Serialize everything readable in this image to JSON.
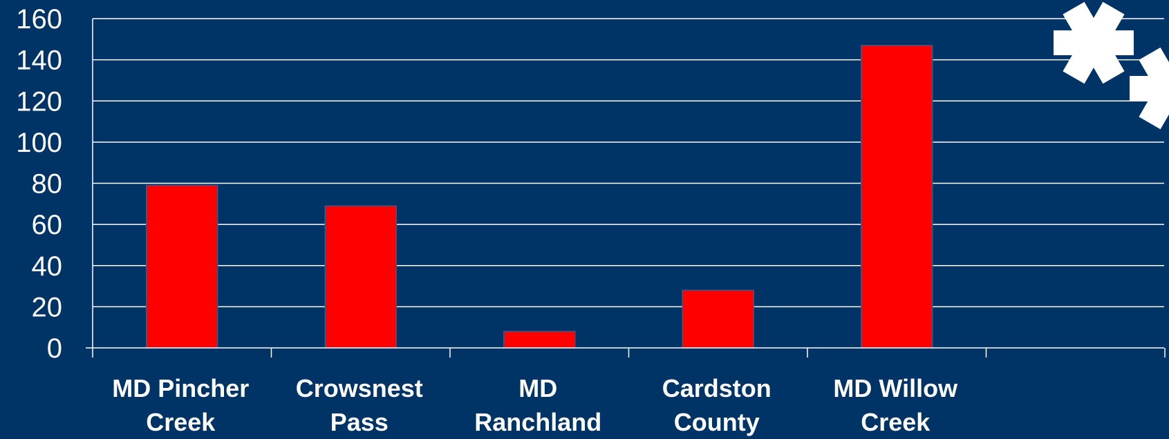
{
  "chart_data": {
    "type": "bar",
    "categories": [
      [
        "MD Pincher",
        "Creek"
      ],
      [
        "Crowsnest",
        "Pass"
      ],
      [
        "MD",
        "Ranchland"
      ],
      [
        "Cardston",
        "County"
      ],
      [
        "MD Willow",
        "Creek"
      ],
      [
        "",
        ""
      ]
    ],
    "values": [
      79,
      69,
      8,
      28,
      147,
      null
    ],
    "yticks": [
      "0",
      "20",
      "40",
      "60",
      "80",
      "100",
      "120",
      "140",
      "160"
    ],
    "ylim": [
      0,
      160
    ],
    "title": "",
    "xlabel": "",
    "ylabel": "",
    "grid": true,
    "legend": "none"
  },
  "colors": {
    "background": "#003366",
    "bar": "#ff0000",
    "gridline": "#ffffff",
    "text": "#ffffff"
  },
  "decorations": {
    "asterisk_icon": "asterisk-icon"
  }
}
